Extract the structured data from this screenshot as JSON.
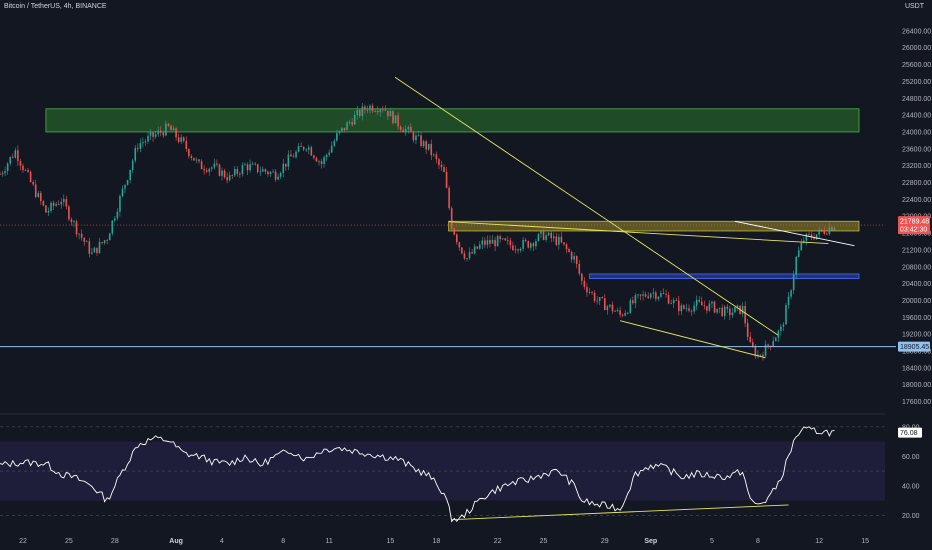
{
  "header": {
    "title": "Bitcoin / TetherUS, 4h, BINANCE",
    "currency": "USDT"
  },
  "colors": {
    "background": "#131722",
    "up": "#26a69a",
    "down": "#ef5350",
    "trendline": "#e5e55f",
    "horizontal_line": "#90c2f0",
    "resistance_zone": "#2e8b2e",
    "supply_zone": "#b5a62b",
    "mid_zone": "#2d47c4",
    "rsi_line": "#ffffff",
    "rsi_band": "#1e1e3a"
  },
  "chart_data": [
    {
      "type": "candlestick",
      "title": "Bitcoin / TetherUS, 4h, BINANCE",
      "ylim": [
        17400,
        26800
      ],
      "y_ticks": [
        17600,
        18000,
        18400,
        18800,
        19200,
        19600,
        20000,
        20400,
        20800,
        21200,
        21600,
        22000,
        22400,
        22800,
        23200,
        23600,
        24000,
        24400,
        24800,
        25200,
        25600,
        26000,
        26400
      ],
      "x_ticks": [
        "22",
        "25",
        "28",
        "Aug",
        "4",
        "8",
        "11",
        "15",
        "18",
        "22",
        "25",
        "29",
        "Sep",
        "5",
        "8",
        "12",
        "15"
      ],
      "x_tick_days": [
        22,
        25,
        28,
        32,
        35,
        39,
        42,
        46,
        49,
        53,
        56,
        60,
        63,
        67,
        70,
        74,
        77
      ],
      "x_range_days": [
        20.5,
        78.3
      ],
      "close_path": [
        [
          20.5,
          23000
        ],
        [
          21.5,
          23550
        ],
        [
          22.5,
          22800
        ],
        [
          23.5,
          22100
        ],
        [
          24.5,
          22400
        ],
        [
          25.5,
          21700
        ],
        [
          26.5,
          21100
        ],
        [
          27.5,
          21500
        ],
        [
          28.5,
          22600
        ],
        [
          29.5,
          23700
        ],
        [
          30.5,
          23900
        ],
        [
          31.5,
          24100
        ],
        [
          32.5,
          23700
        ],
        [
          33.5,
          23200
        ],
        [
          34.5,
          23150
        ],
        [
          35.5,
          22900
        ],
        [
          36.5,
          23200
        ],
        [
          37.5,
          23100
        ],
        [
          38.5,
          23000
        ],
        [
          39.5,
          23400
        ],
        [
          40.5,
          23700
        ],
        [
          41.5,
          23250
        ],
        [
          42.5,
          23900
        ],
        [
          43.5,
          24300
        ],
        [
          44.5,
          24600
        ],
        [
          45.5,
          24600
        ],
        [
          46.5,
          24200
        ],
        [
          47.5,
          23900
        ],
        [
          48.5,
          23600
        ],
        [
          49.5,
          23000
        ],
        [
          50.0,
          21800
        ],
        [
          50.5,
          21300
        ],
        [
          51.0,
          21000
        ],
        [
          52.0,
          21350
        ],
        [
          53.0,
          21400
        ],
        [
          54.0,
          21300
        ],
        [
          55.0,
          21350
        ],
        [
          56.0,
          21550
        ],
        [
          57.0,
          21400
        ],
        [
          58.0,
          21000
        ],
        [
          58.5,
          20450
        ],
        [
          59.5,
          20000
        ],
        [
          60.5,
          19800
        ],
        [
          61.0,
          19650
        ],
        [
          62.0,
          20000
        ],
        [
          63.0,
          20200
        ],
        [
          64.0,
          20100
        ],
        [
          65.0,
          19800
        ],
        [
          66.0,
          19900
        ],
        [
          67.0,
          19850
        ],
        [
          68.0,
          19700
        ],
        [
          69.0,
          19800
        ],
        [
          69.5,
          18900
        ],
        [
          70.0,
          18700
        ],
        [
          70.5,
          18850
        ],
        [
          71.0,
          19100
        ],
        [
          71.5,
          19300
        ],
        [
          72.0,
          20000
        ],
        [
          72.5,
          21000
        ],
        [
          73.0,
          21450
        ],
        [
          74.0,
          21600
        ],
        [
          75.0,
          21800
        ]
      ],
      "last_price": "21789.48",
      "countdown": "03:42:30",
      "horizontal_level": "18905.45",
      "zones": [
        {
          "from_day": 23.5,
          "to_day": 76.6,
          "low": 24000,
          "high": 24550
        },
        {
          "from_day": 49.8,
          "to_day": 76.6,
          "low": 21650,
          "high": 21880
        },
        {
          "from_day": 59.0,
          "to_day": 76.6,
          "low": 20520,
          "high": 20630
        }
      ],
      "trendlines": [
        {
          "from": [
            46.3,
            25300
          ],
          "to": [
            71.3,
            19180
          ],
          "color": "#e5e55f"
        },
        {
          "from": [
            49.8,
            21870
          ],
          "to": [
            74.6,
            21350
          ],
          "color": "#e5e55f"
        },
        {
          "from": [
            68.5,
            21880
          ],
          "to": [
            76.3,
            21300
          ],
          "color": "#ffffff"
        },
        {
          "from": [
            61.0,
            19520
          ],
          "to": [
            70.5,
            18640
          ],
          "color": "#e5e55f"
        }
      ]
    },
    {
      "type": "line",
      "title": "RSI",
      "ylim": [
        10,
        86
      ],
      "y_ticks": [
        20.0,
        40.0,
        60.0,
        80.0
      ],
      "band": [
        30,
        70
      ],
      "last_value": "76.08",
      "path": [
        [
          20.5,
          54
        ],
        [
          22,
          56
        ],
        [
          23.5,
          55
        ],
        [
          24.5,
          48
        ],
        [
          25.5,
          45
        ],
        [
          26.5,
          40
        ],
        [
          27.5,
          30
        ],
        [
          28.5,
          50
        ],
        [
          29.5,
          68
        ],
        [
          30.5,
          72
        ],
        [
          31.5,
          71
        ],
        [
          32.5,
          62
        ],
        [
          33.5,
          60
        ],
        [
          34.5,
          56
        ],
        [
          35.5,
          55
        ],
        [
          36.5,
          60
        ],
        [
          37.5,
          54
        ],
        [
          38.5,
          60
        ],
        [
          39.5,
          64
        ],
        [
          40.5,
          58
        ],
        [
          41.5,
          64
        ],
        [
          42.5,
          66
        ],
        [
          43.5,
          64
        ],
        [
          44.5,
          62
        ],
        [
          45.5,
          60
        ],
        [
          46.5,
          58
        ],
        [
          47.5,
          52
        ],
        [
          48.5,
          47
        ],
        [
          49.5,
          35
        ],
        [
          50.0,
          18
        ],
        [
          50.5,
          17
        ],
        [
          51.0,
          22
        ],
        [
          52.0,
          32
        ],
        [
          53.0,
          38
        ],
        [
          54.0,
          42
        ],
        [
          55.0,
          44
        ],
        [
          56.0,
          48
        ],
        [
          57.0,
          50
        ],
        [
          58.0,
          40
        ],
        [
          58.5,
          30
        ],
        [
          59.5,
          27
        ],
        [
          60.5,
          26
        ],
        [
          61.0,
          24
        ],
        [
          62.0,
          48
        ],
        [
          63.0,
          54
        ],
        [
          64.0,
          52
        ],
        [
          65.0,
          46
        ],
        [
          66.0,
          48
        ],
        [
          67.0,
          47
        ],
        [
          68.0,
          46
        ],
        [
          69.0,
          50
        ],
        [
          69.5,
          30
        ],
        [
          70.0,
          27
        ],
        [
          70.5,
          30
        ],
        [
          71.0,
          36
        ],
        [
          71.5,
          45
        ],
        [
          72.0,
          60
        ],
        [
          72.5,
          74
        ],
        [
          73.0,
          78
        ],
        [
          74.0,
          77
        ],
        [
          75.0,
          76
        ]
      ],
      "divergence_line": {
        "from": [
          50.0,
          17
        ],
        "to": [
          72.0,
          27
        ]
      }
    }
  ]
}
